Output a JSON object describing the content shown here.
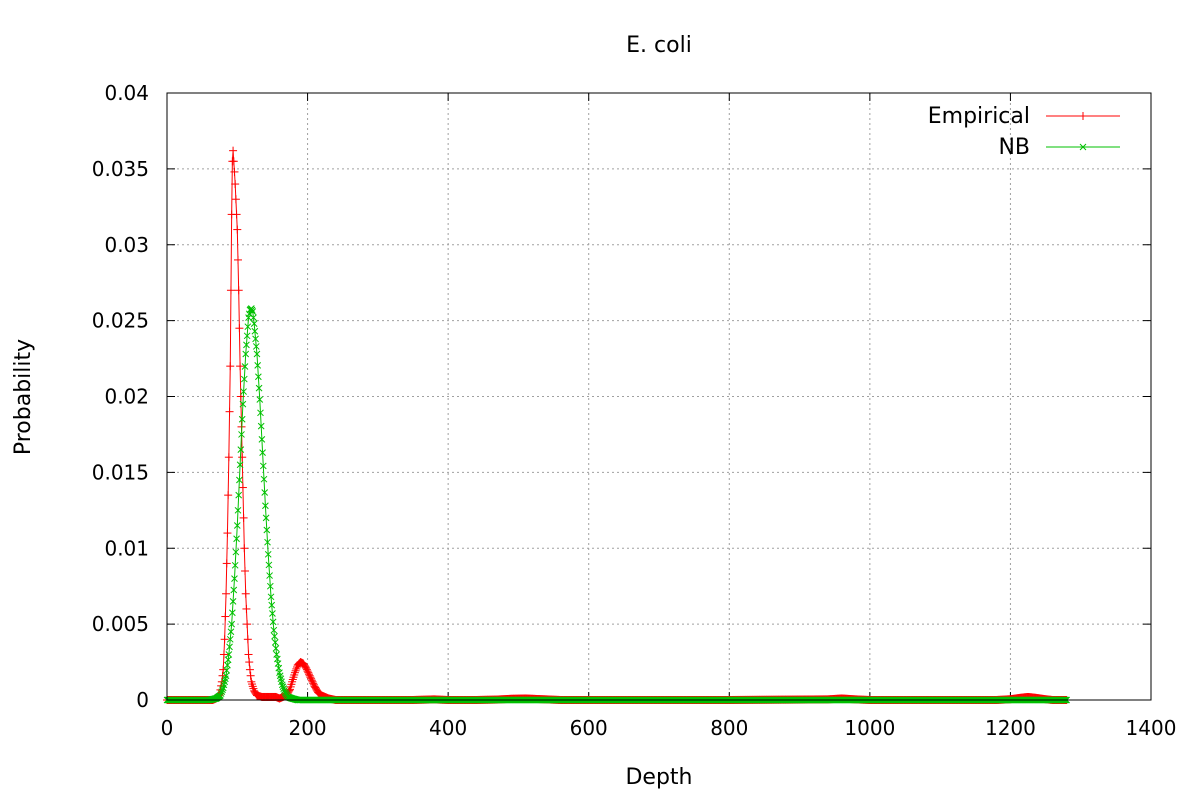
{
  "chart_data": {
    "type": "line",
    "title": "E. coli",
    "xlabel": "Depth",
    "ylabel": "Probability",
    "xlim": [
      0,
      1400
    ],
    "ylim": [
      0,
      0.04
    ],
    "grid": true,
    "legend_position": "top-right",
    "x_ticks": [
      0,
      200,
      400,
      600,
      800,
      1000,
      1200,
      1400
    ],
    "x_tick_labels": [
      "0",
      "200",
      "400",
      "600",
      "800",
      "1000",
      "1200",
      "1400"
    ],
    "y_ticks": [
      0,
      0.005,
      0.01,
      0.015,
      0.02,
      0.025,
      0.03,
      0.035,
      0.04
    ],
    "y_tick_labels": [
      "0",
      "0.005",
      "0.01",
      "0.015",
      "0.02",
      "0.025",
      "0.03",
      "0.035",
      "0.04"
    ],
    "series": [
      {
        "name": "Empirical",
        "color": "#ff0000",
        "marker": "plus",
        "points": [
          [
            0,
            0
          ],
          [
            40,
            0
          ],
          [
            65,
            0
          ],
          [
            70,
            0.0001
          ],
          [
            75,
            0.0004
          ],
          [
            78,
            0.0012
          ],
          [
            80,
            0.002
          ],
          [
            82,
            0.004
          ],
          [
            84,
            0.007
          ],
          [
            86,
            0.011
          ],
          [
            88,
            0.016
          ],
          [
            90,
            0.022
          ],
          [
            91,
            0.027
          ],
          [
            92,
            0.032
          ],
          [
            93,
            0.0355
          ],
          [
            94,
            0.0362
          ],
          [
            95,
            0.0355
          ],
          [
            96,
            0.0348
          ],
          [
            97,
            0.034
          ],
          [
            98,
            0.033
          ],
          [
            100,
            0.031
          ],
          [
            102,
            0.027
          ],
          [
            104,
            0.022
          ],
          [
            106,
            0.018
          ],
          [
            108,
            0.014
          ],
          [
            110,
            0.01
          ],
          [
            112,
            0.007
          ],
          [
            114,
            0.005
          ],
          [
            116,
            0.003
          ],
          [
            118,
            0.002
          ],
          [
            120,
            0.0012
          ],
          [
            124,
            0.0006
          ],
          [
            128,
            0.0003
          ],
          [
            135,
            0.0002
          ],
          [
            145,
            0.0002
          ],
          [
            155,
            0.0002
          ],
          [
            160,
            0.0001
          ],
          [
            165,
            0.0002
          ],
          [
            170,
            0.0003
          ],
          [
            175,
            0.0007
          ],
          [
            178,
            0.0012
          ],
          [
            182,
            0.0018
          ],
          [
            186,
            0.0023
          ],
          [
            190,
            0.0025
          ],
          [
            194,
            0.0024
          ],
          [
            198,
            0.0021
          ],
          [
            202,
            0.0017
          ],
          [
            206,
            0.0013
          ],
          [
            210,
            0.0009
          ],
          [
            215,
            0.0005
          ],
          [
            220,
            0.0003
          ],
          [
            230,
            0.0001
          ],
          [
            240,
            0
          ],
          [
            300,
            0
          ],
          [
            350,
            0
          ],
          [
            380,
            4e-05
          ],
          [
            400,
            0
          ],
          [
            440,
            0
          ],
          [
            470,
            3e-05
          ],
          [
            490,
            8e-05
          ],
          [
            510,
            0.0001
          ],
          [
            530,
            6e-05
          ],
          [
            560,
            0
          ],
          [
            700,
            0
          ],
          [
            800,
            0
          ],
          [
            940,
            4e-05
          ],
          [
            960,
            0.0001
          ],
          [
            980,
            4e-05
          ],
          [
            1000,
            0
          ],
          [
            1180,
            0
          ],
          [
            1200,
            5e-05
          ],
          [
            1215,
            0.00015
          ],
          [
            1225,
            0.0002
          ],
          [
            1235,
            0.00015
          ],
          [
            1250,
            5e-05
          ],
          [
            1260,
            0
          ],
          [
            1280,
            0
          ]
        ]
      },
      {
        "name": "NB",
        "color": "#00c000",
        "marker": "cross",
        "points": [
          [
            0,
            0
          ],
          [
            60,
            0
          ],
          [
            70,
            0.0001
          ],
          [
            76,
            0.0003
          ],
          [
            80,
            0.0008
          ],
          [
            84,
            0.0016
          ],
          [
            88,
            0.003
          ],
          [
            92,
            0.005
          ],
          [
            96,
            0.008
          ],
          [
            100,
            0.0115
          ],
          [
            104,
            0.0155
          ],
          [
            108,
            0.0195
          ],
          [
            112,
            0.0228
          ],
          [
            116,
            0.0252
          ],
          [
            118,
            0.0257
          ],
          [
            120,
            0.0258
          ],
          [
            122,
            0.0256
          ],
          [
            124,
            0.0248
          ],
          [
            128,
            0.0228
          ],
          [
            132,
            0.0198
          ],
          [
            136,
            0.0163
          ],
          [
            140,
            0.0128
          ],
          [
            144,
            0.0096
          ],
          [
            148,
            0.0068
          ],
          [
            152,
            0.0046
          ],
          [
            156,
            0.003
          ],
          [
            160,
            0.0018
          ],
          [
            164,
            0.001
          ],
          [
            168,
            0.0005
          ],
          [
            172,
            0.0002
          ],
          [
            178,
            0.0001
          ],
          [
            186,
            0
          ],
          [
            300,
            0
          ],
          [
            600,
            0
          ],
          [
            900,
            0
          ],
          [
            1200,
            0
          ],
          [
            1280,
            0
          ]
        ]
      }
    ]
  }
}
